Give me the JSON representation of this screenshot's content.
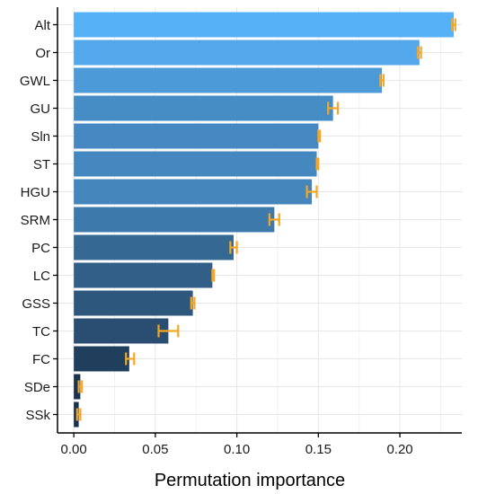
{
  "chart_data": {
    "type": "bar",
    "orientation": "horizontal",
    "categories": [
      "Alt",
      "Or",
      "GWL",
      "GU",
      "Sln",
      "ST",
      "HGU",
      "SRM",
      "PC",
      "LC",
      "GSS",
      "TC",
      "FC",
      "SDe",
      "SSk"
    ],
    "values": [
      0.233,
      0.212,
      0.189,
      0.159,
      0.15,
      0.149,
      0.146,
      0.123,
      0.098,
      0.085,
      0.073,
      0.058,
      0.034,
      0.004,
      0.003
    ],
    "error_low": [
      0.232,
      0.211,
      0.188,
      0.156,
      0.15,
      0.149,
      0.143,
      0.12,
      0.096,
      0.085,
      0.072,
      0.052,
      0.032,
      0.003,
      0.002
    ],
    "error_high": [
      0.234,
      0.213,
      0.19,
      0.162,
      0.151,
      0.15,
      0.149,
      0.126,
      0.1,
      0.086,
      0.074,
      0.064,
      0.037,
      0.005,
      0.004
    ],
    "colors": [
      "#56B1F7",
      "#52A8EA",
      "#4C9BD8",
      "#468DC6",
      "#4689C2",
      "#4588BF",
      "#4485BB",
      "#3E79AB",
      "#356993",
      "#325F87",
      "#2D577C",
      "#294E71",
      "#203F5D",
      "#1A334E",
      "#19314C"
    ],
    "error_bar_color": "#F5A623",
    "xlabel": "Permutation importance",
    "ylabel": "",
    "xlim": [
      -0.01,
      0.238
    ],
    "xticks": [
      0.0,
      0.05,
      0.1,
      0.15,
      0.2
    ],
    "xtick_labels": [
      "0.00",
      "0.05",
      "0.10",
      "0.15",
      "0.20"
    ],
    "grid": true,
    "legend": "none"
  }
}
